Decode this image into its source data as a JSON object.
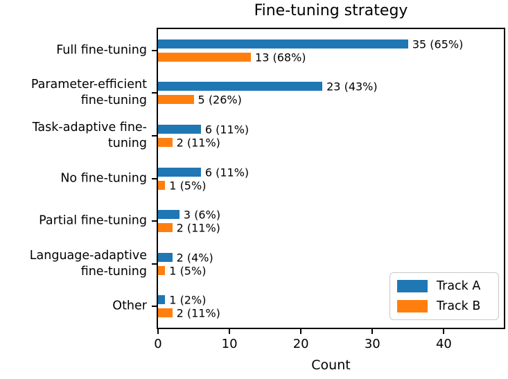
{
  "chart_data": {
    "type": "bar",
    "orientation": "horizontal",
    "title": "Fine-tuning strategy",
    "xlabel": "Count",
    "xlim": [
      0,
      48.4
    ],
    "xticks": [
      0,
      10,
      20,
      30,
      40
    ],
    "grid": false,
    "categories": [
      "Full fine-tuning",
      "Parameter-efficient\nfine-tuning",
      "Task-adaptive fine-\ntuning",
      "No fine-tuning",
      "Partial fine-tuning",
      "Language-adaptive\nfine-tuning",
      "Other"
    ],
    "series": [
      {
        "name": "Track A",
        "color": "#1f77b4",
        "values": [
          35,
          23,
          6,
          6,
          3,
          2,
          1
        ],
        "labels": [
          "35 (65%)",
          "23 (43%)",
          "6 (11%)",
          "6 (11%)",
          "3 (6%)",
          "2 (4%)",
          "1 (2%)"
        ]
      },
      {
        "name": "Track B",
        "color": "#ff7f0e",
        "values": [
          13,
          5,
          2,
          1,
          2,
          1,
          2
        ],
        "labels": [
          "13 (68%)",
          "5 (26%)",
          "2 (11%)",
          "1 (5%)",
          "2 (11%)",
          "1 (5%)",
          "2 (11%)"
        ]
      }
    ],
    "legend": {
      "position": "lower right",
      "entries": [
        "Track A",
        "Track B"
      ]
    }
  }
}
